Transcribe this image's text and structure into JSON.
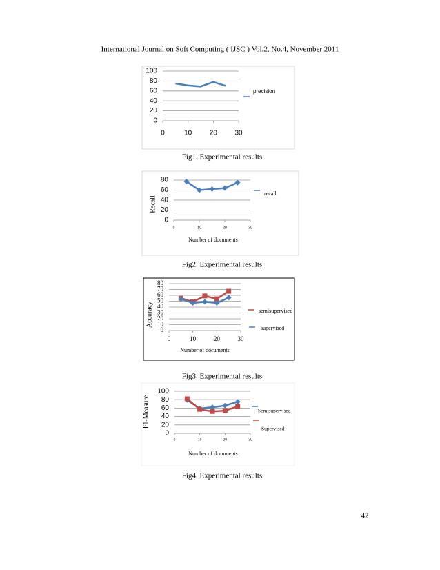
{
  "header": "International Journal on Soft Computing ( IJSC ) Vol.2, No.4, November 2011",
  "page_number": "42",
  "chart_data": [
    {
      "type": "line",
      "caption": "Fig1. Experimental results",
      "x": [
        5,
        10,
        15,
        20,
        25
      ],
      "xlim": [
        0,
        30
      ],
      "xticks": [
        0,
        10,
        20,
        30
      ],
      "ylim": [
        0,
        100
      ],
      "yticks": [
        0,
        20,
        40,
        60,
        80,
        100
      ],
      "grid": true,
      "series": [
        {
          "name": "precision",
          "color": "#4a7ebb",
          "marker": "none",
          "values": [
            75,
            71,
            69,
            78,
            70
          ]
        }
      ]
    },
    {
      "type": "line",
      "caption": "Fig2. Experimental results",
      "x_label": "Number of documents",
      "y_label": "Recall",
      "x": [
        5,
        10,
        15,
        20,
        25
      ],
      "xlim": [
        0,
        30
      ],
      "xticks": [
        0,
        10,
        20,
        30
      ],
      "ylim": [
        0,
        80
      ],
      "yticks": [
        0,
        20,
        40,
        60,
        80
      ],
      "grid": true,
      "series": [
        {
          "name": "recall",
          "color": "#4a7ebb",
          "marker": "diamond",
          "values": [
            77,
            60,
            62,
            64,
            75
          ]
        }
      ]
    },
    {
      "type": "line",
      "caption": "Fig3. Experimental results",
      "x_label": "Number of documents",
      "y_label": "Accuracy",
      "x": [
        5,
        10,
        15,
        20,
        25
      ],
      "xlim": [
        0,
        30
      ],
      "xticks": [
        0,
        10,
        20,
        30
      ],
      "ylim": [
        0,
        80
      ],
      "yticks": [
        0,
        10,
        20,
        30,
        40,
        50,
        60,
        70,
        80
      ],
      "grid": true,
      "series": [
        {
          "name": "semisupervised",
          "color": "#be4b48",
          "marker": "square",
          "values": [
            55,
            49,
            59,
            54,
            67
          ]
        },
        {
          "name": "supervised",
          "color": "#4a7ebb",
          "marker": "diamond",
          "values": [
            54,
            47,
            49,
            47,
            56
          ]
        }
      ]
    },
    {
      "type": "line",
      "caption": "Fig4. Experimental results",
      "x_label": "Number of documents",
      "y_label": "F1-Measure",
      "x": [
        5,
        10,
        15,
        20,
        25
      ],
      "xlim": [
        0,
        30
      ],
      "xticks": [
        0,
        10,
        20,
        30
      ],
      "ylim": [
        0,
        100
      ],
      "yticks": [
        0,
        20,
        40,
        60,
        80,
        100
      ],
      "grid": true,
      "series": [
        {
          "name": "Semisupervised",
          "color": "#4a7ebb",
          "marker": "diamond",
          "values": [
            79,
            59,
            62,
            66,
            75
          ]
        },
        {
          "name": "Supervised",
          "color": "#be4b48",
          "marker": "square",
          "values": [
            82,
            57,
            52,
            54,
            64
          ]
        }
      ]
    }
  ]
}
